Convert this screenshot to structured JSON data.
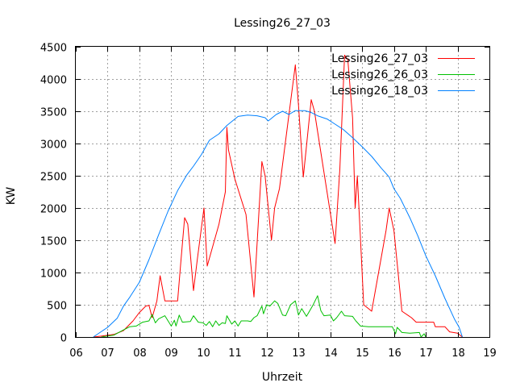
{
  "chart_data": {
    "type": "line",
    "title": "Lessing26_27_03",
    "xlabel": "Uhrzeit",
    "ylabel": "KW",
    "xlim": [
      6,
      19
    ],
    "ylim": [
      0,
      4500
    ],
    "x_ticks": [
      6,
      7,
      8,
      9,
      10,
      11,
      12,
      13,
      14,
      15,
      16,
      17,
      18,
      19
    ],
    "x_tick_labels": [
      "06",
      "07",
      "08",
      "09",
      "10",
      "11",
      "12",
      "13",
      "14",
      "15",
      "16",
      "17",
      "18",
      "19"
    ],
    "y_ticks": [
      0,
      500,
      1000,
      1500,
      2000,
      2500,
      3000,
      3500,
      4000,
      4500
    ],
    "y_tick_labels": [
      "0",
      "500",
      "1000",
      "1500",
      "2000",
      "2500",
      "3000",
      "3500",
      "4000",
      "4500"
    ],
    "grid": true,
    "legend_position": "top-right",
    "series": [
      {
        "name": "Lessing26_27_03",
        "color": "#ff0000",
        "points": [
          [
            6.55,
            0
          ],
          [
            6.9,
            20
          ],
          [
            7.2,
            40
          ],
          [
            7.5,
            100
          ],
          [
            7.8,
            250
          ],
          [
            8.0,
            380
          ],
          [
            8.2,
            480
          ],
          [
            8.3,
            490
          ],
          [
            8.4,
            300
          ],
          [
            8.55,
            560
          ],
          [
            8.65,
            950
          ],
          [
            8.8,
            560
          ],
          [
            9.0,
            560
          ],
          [
            9.2,
            560
          ],
          [
            9.3,
            1150
          ],
          [
            9.42,
            1850
          ],
          [
            9.52,
            1750
          ],
          [
            9.7,
            720
          ],
          [
            9.82,
            1200
          ],
          [
            10.03,
            2000
          ],
          [
            10.13,
            1100
          ],
          [
            10.5,
            1750
          ],
          [
            10.7,
            2250
          ],
          [
            10.75,
            3250
          ],
          [
            10.8,
            2900
          ],
          [
            11.0,
            2450
          ],
          [
            11.35,
            1900
          ],
          [
            11.6,
            620
          ],
          [
            11.85,
            2720
          ],
          [
            11.95,
            2500
          ],
          [
            12.15,
            1500
          ],
          [
            12.25,
            2000
          ],
          [
            12.4,
            2300
          ],
          [
            12.9,
            4220
          ],
          [
            13.0,
            3600
          ],
          [
            13.15,
            2480
          ],
          [
            13.4,
            3680
          ],
          [
            13.5,
            3500
          ],
          [
            14.15,
            1450
          ],
          [
            14.3,
            2600
          ],
          [
            14.45,
            4370
          ],
          [
            14.55,
            4300
          ],
          [
            14.7,
            3400
          ],
          [
            14.78,
            2000
          ],
          [
            14.85,
            2500
          ],
          [
            14.95,
            1500
          ],
          [
            15.05,
            500
          ],
          [
            15.3,
            400
          ],
          [
            15.75,
            1650
          ],
          [
            15.85,
            2000
          ],
          [
            16.0,
            1650
          ],
          [
            16.25,
            400
          ],
          [
            16.55,
            300
          ],
          [
            16.7,
            230
          ],
          [
            17.0,
            230
          ],
          [
            17.25,
            230
          ],
          [
            17.3,
            160
          ],
          [
            17.6,
            160
          ],
          [
            17.75,
            80
          ],
          [
            18.0,
            60
          ],
          [
            18.15,
            0
          ]
        ]
      },
      {
        "name": "Lessing26_26_03",
        "color": "#00c000",
        "points": [
          [
            6.8,
            0
          ],
          [
            7.2,
            30
          ],
          [
            7.5,
            110
          ],
          [
            7.7,
            160
          ],
          [
            7.9,
            170
          ],
          [
            8.1,
            230
          ],
          [
            8.3,
            250
          ],
          [
            8.4,
            350
          ],
          [
            8.5,
            220
          ],
          [
            8.6,
            280
          ],
          [
            8.8,
            330
          ],
          [
            9.0,
            170
          ],
          [
            9.1,
            260
          ],
          [
            9.15,
            170
          ],
          [
            9.25,
            340
          ],
          [
            9.35,
            230
          ],
          [
            9.6,
            240
          ],
          [
            9.7,
            330
          ],
          [
            9.85,
            230
          ],
          [
            10.0,
            220
          ],
          [
            10.1,
            180
          ],
          [
            10.2,
            240
          ],
          [
            10.3,
            160
          ],
          [
            10.4,
            250
          ],
          [
            10.5,
            180
          ],
          [
            10.6,
            220
          ],
          [
            10.7,
            210
          ],
          [
            10.75,
            330
          ],
          [
            10.9,
            200
          ],
          [
            11.0,
            250
          ],
          [
            11.1,
            170
          ],
          [
            11.2,
            250
          ],
          [
            11.4,
            250
          ],
          [
            11.5,
            240
          ],
          [
            11.6,
            300
          ],
          [
            11.7,
            330
          ],
          [
            11.85,
            480
          ],
          [
            11.9,
            360
          ],
          [
            12.0,
            500
          ],
          [
            12.1,
            480
          ],
          [
            12.25,
            560
          ],
          [
            12.35,
            520
          ],
          [
            12.5,
            340
          ],
          [
            12.6,
            330
          ],
          [
            12.75,
            500
          ],
          [
            12.9,
            560
          ],
          [
            13.0,
            340
          ],
          [
            13.1,
            440
          ],
          [
            13.25,
            320
          ],
          [
            13.45,
            490
          ],
          [
            13.6,
            640
          ],
          [
            13.7,
            410
          ],
          [
            13.8,
            330
          ],
          [
            14.0,
            340
          ],
          [
            14.1,
            250
          ],
          [
            14.2,
            300
          ],
          [
            14.35,
            400
          ],
          [
            14.45,
            330
          ],
          [
            14.7,
            320
          ],
          [
            14.8,
            250
          ],
          [
            14.95,
            170
          ],
          [
            15.2,
            160
          ],
          [
            15.5,
            160
          ],
          [
            15.8,
            160
          ],
          [
            15.95,
            160
          ],
          [
            16.05,
            50
          ],
          [
            16.1,
            150
          ],
          [
            16.25,
            70
          ],
          [
            16.5,
            60
          ],
          [
            16.8,
            70
          ],
          [
            16.85,
            0
          ],
          [
            16.95,
            50
          ],
          [
            17.0,
            0
          ]
        ]
      },
      {
        "name": "Lessing26_18_03",
        "color": "#0080ff",
        "points": [
          [
            6.55,
            0
          ],
          [
            7.0,
            150
          ],
          [
            7.3,
            290
          ],
          [
            7.5,
            480
          ],
          [
            7.7,
            620
          ],
          [
            8.0,
            850
          ],
          [
            8.3,
            1200
          ],
          [
            8.6,
            1580
          ],
          [
            8.9,
            1950
          ],
          [
            9.2,
            2270
          ],
          [
            9.5,
            2520
          ],
          [
            9.7,
            2650
          ],
          [
            9.95,
            2830
          ],
          [
            10.2,
            3050
          ],
          [
            10.5,
            3150
          ],
          [
            10.75,
            3280
          ],
          [
            11.1,
            3420
          ],
          [
            11.4,
            3440
          ],
          [
            11.7,
            3430
          ],
          [
            11.95,
            3400
          ],
          [
            12.05,
            3350
          ],
          [
            12.3,
            3450
          ],
          [
            12.5,
            3500
          ],
          [
            12.7,
            3450
          ],
          [
            12.9,
            3510
          ],
          [
            13.2,
            3510
          ],
          [
            13.4,
            3480
          ],
          [
            13.6,
            3430
          ],
          [
            13.9,
            3380
          ],
          [
            14.15,
            3300
          ],
          [
            14.4,
            3220
          ],
          [
            14.7,
            3090
          ],
          [
            15.0,
            2950
          ],
          [
            15.3,
            2800
          ],
          [
            15.6,
            2620
          ],
          [
            15.85,
            2480
          ],
          [
            16.0,
            2300
          ],
          [
            16.2,
            2150
          ],
          [
            16.5,
            1850
          ],
          [
            16.75,
            1570
          ],
          [
            17.0,
            1260
          ],
          [
            17.3,
            950
          ],
          [
            17.6,
            600
          ],
          [
            17.9,
            280
          ],
          [
            18.05,
            150
          ],
          [
            18.15,
            0
          ]
        ]
      }
    ]
  }
}
